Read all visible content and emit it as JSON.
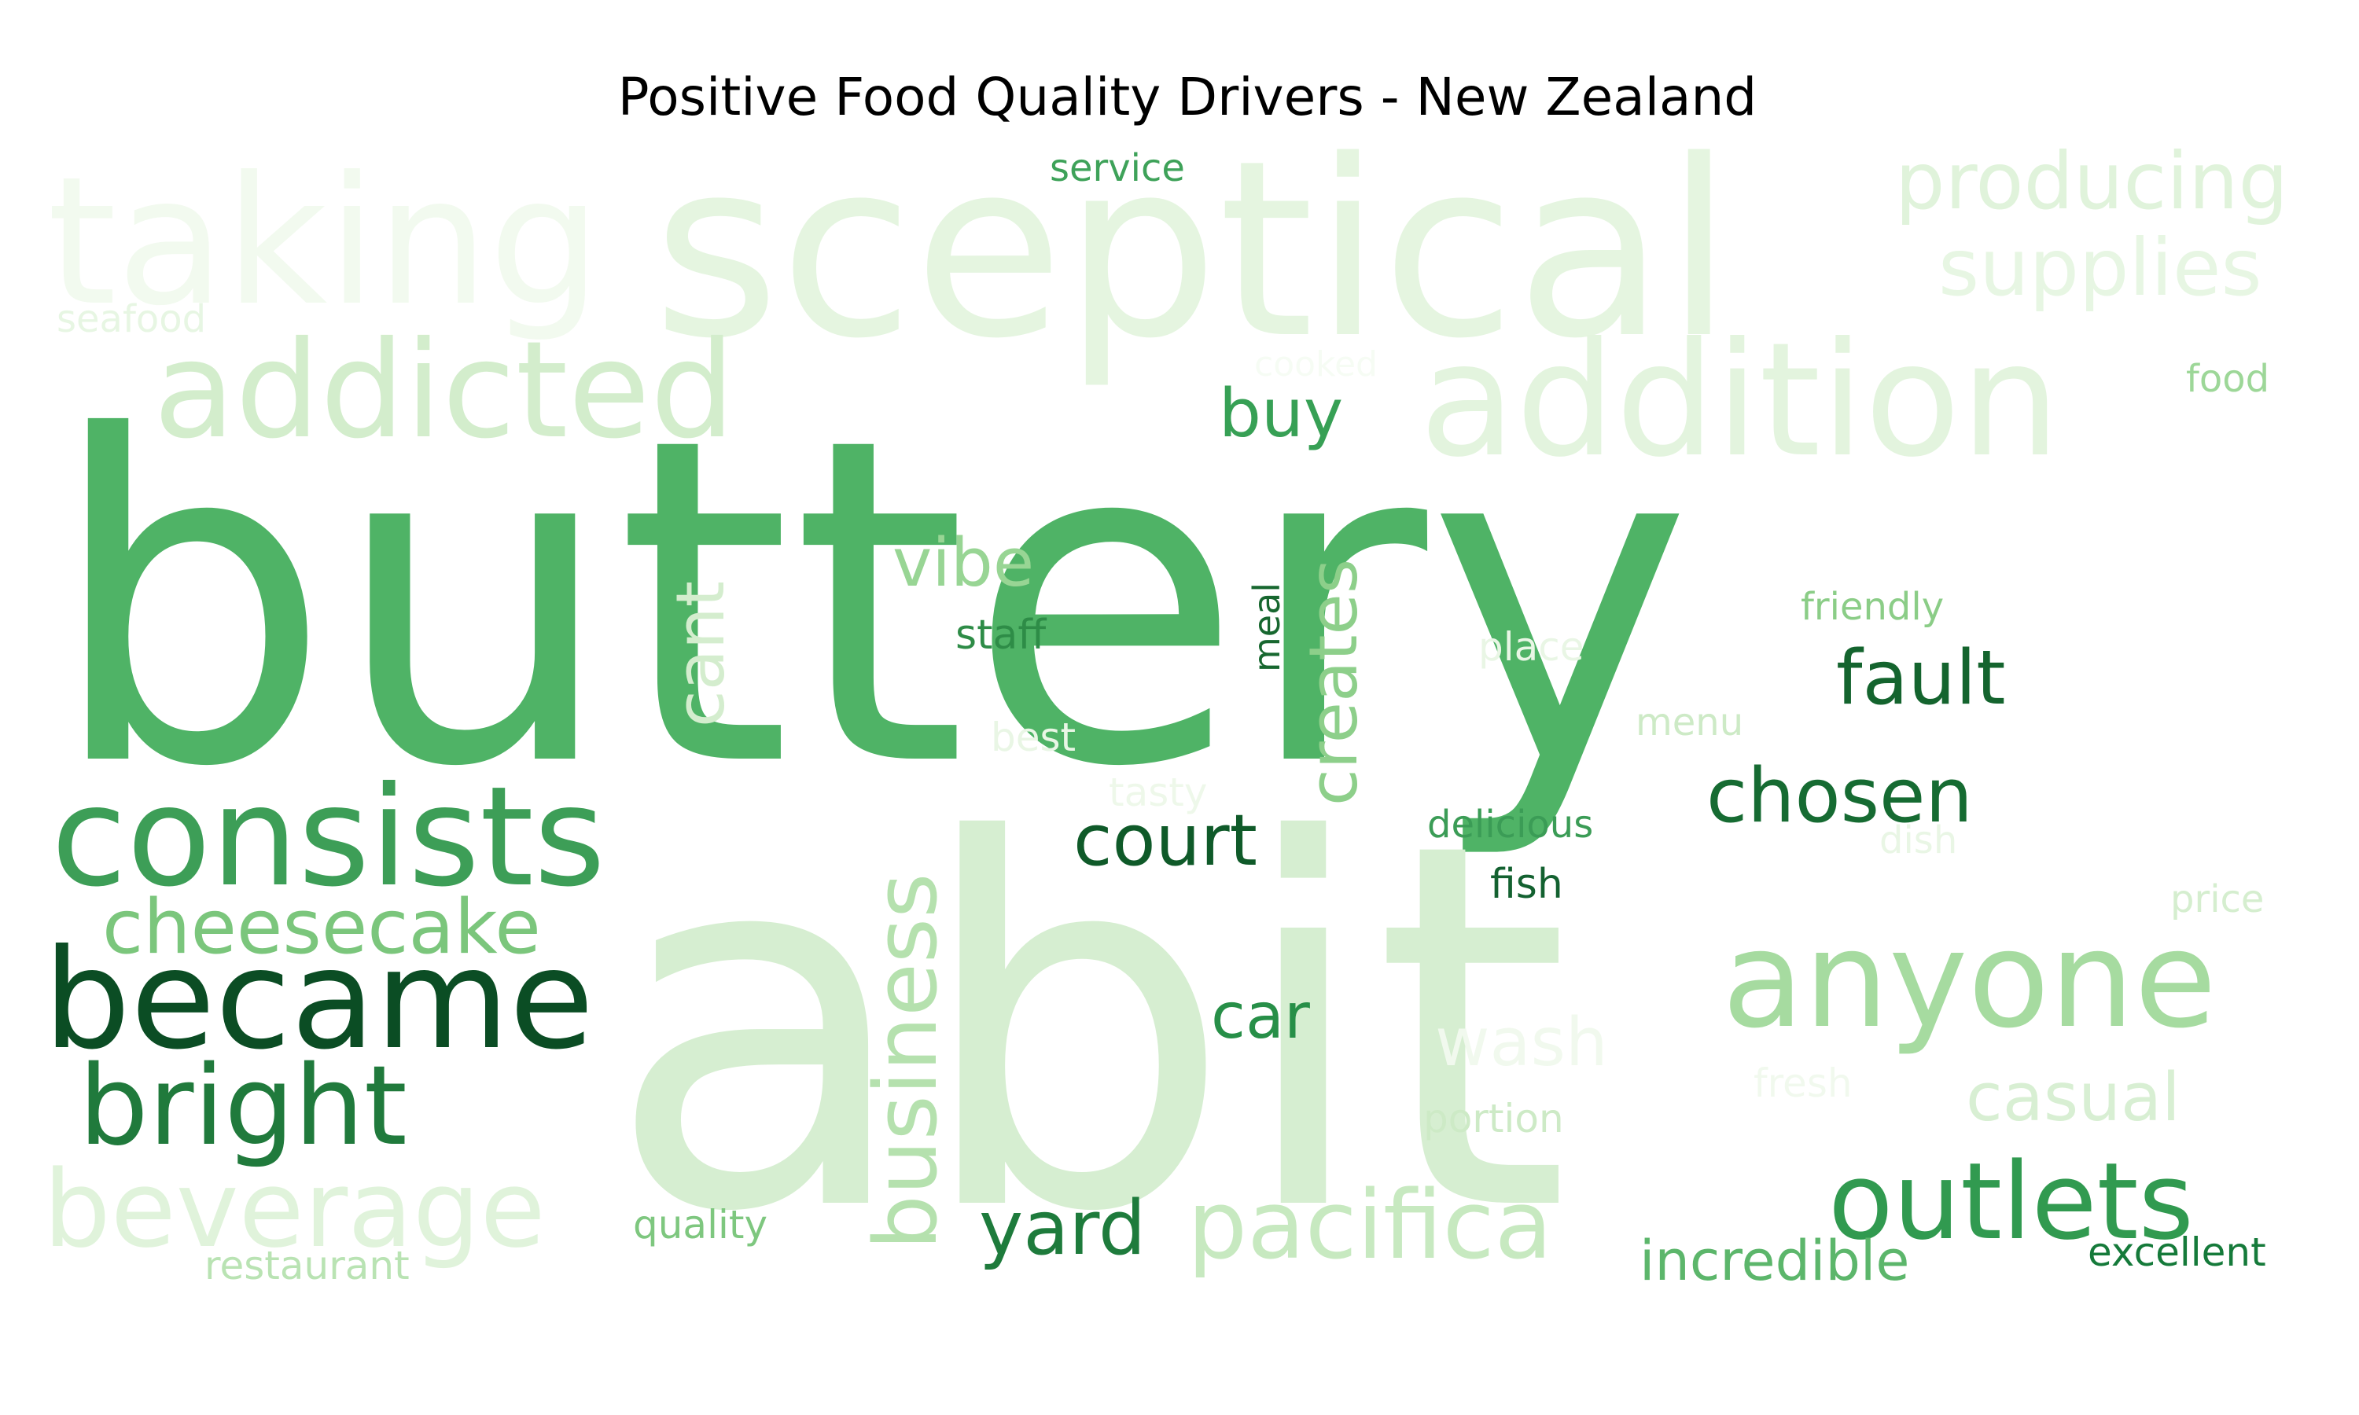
{
  "chart_data": {
    "type": "wordcloud",
    "title": "Positive Food Quality Drivers - New Zealand",
    "colormap": "greens",
    "words": [
      {
        "text": "buttery",
        "color": "#4fb366"
      },
      {
        "text": "abit",
        "color": "#d6eed1"
      },
      {
        "text": "sceptical",
        "color": "#e5f5e0"
      },
      {
        "text": "taking",
        "color": "#f2faef"
      },
      {
        "text": "addition",
        "color": "#e3f4de"
      },
      {
        "text": "addicted",
        "color": "#d3edcc"
      },
      {
        "text": "consists",
        "color": "#3d9e57"
      },
      {
        "text": "became",
        "color": "#0b4d24"
      },
      {
        "text": "bright",
        "color": "#207a3c"
      },
      {
        "text": "beverage",
        "color": "#e0f3db"
      },
      {
        "text": "cheesecake",
        "color": "#7bc67c"
      },
      {
        "text": "anyone",
        "color": "#a6dba0"
      },
      {
        "text": "outlets",
        "color": "#319a50"
      },
      {
        "text": "pacifica",
        "color": "#c7e9c0"
      },
      {
        "text": "producing",
        "color": "#e0f3db"
      },
      {
        "text": "supplies",
        "color": "#e7f6e3"
      },
      {
        "text": "business",
        "color": "#b5e1ae"
      },
      {
        "text": "creates",
        "color": "#8dcf8a"
      },
      {
        "text": "cant",
        "color": "#d4edce"
      },
      {
        "text": "vibe",
        "color": "#98d594"
      },
      {
        "text": "fault",
        "color": "#14642e"
      },
      {
        "text": "chosen",
        "color": "#166b32"
      },
      {
        "text": "court",
        "color": "#0f5a29"
      },
      {
        "text": "buy",
        "color": "#37a055"
      },
      {
        "text": "yard",
        "color": "#1e7b3c"
      },
      {
        "text": "car",
        "color": "#278f48"
      },
      {
        "text": "casual",
        "color": "#d8efd3"
      },
      {
        "text": "incredible",
        "color": "#5cb66b"
      },
      {
        "text": "wash",
        "color": "#f1f9ee"
      },
      {
        "text": "staff",
        "color": "#2e8c47"
      },
      {
        "text": "meal",
        "color": "#17672f"
      },
      {
        "text": "friendly",
        "color": "#8bcd87"
      },
      {
        "text": "delicious",
        "color": "#3b9c56"
      },
      {
        "text": "fish",
        "color": "#136130"
      },
      {
        "text": "service",
        "color": "#3ea259"
      },
      {
        "text": "seafood",
        "color": "#e7f6e3"
      },
      {
        "text": "cooked",
        "color": "#f6fcf4"
      },
      {
        "text": "food",
        "color": "#9dd798"
      },
      {
        "text": "place",
        "color": "#e9f6e5"
      },
      {
        "text": "menu",
        "color": "#cdeac6"
      },
      {
        "text": "best",
        "color": "#e9f6e5"
      },
      {
        "text": "tasty",
        "color": "#eef8ea"
      },
      {
        "text": "dish",
        "color": "#e9f6e5"
      },
      {
        "text": "price",
        "color": "#d5eecf"
      },
      {
        "text": "fresh",
        "color": "#f1f9ee"
      },
      {
        "text": "portion",
        "color": "#cdeac6"
      },
      {
        "text": "quality",
        "color": "#7ec77f"
      },
      {
        "text": "restaurant",
        "color": "#b9e3b3"
      },
      {
        "text": "excellent",
        "color": "#157a3a"
      }
    ]
  }
}
